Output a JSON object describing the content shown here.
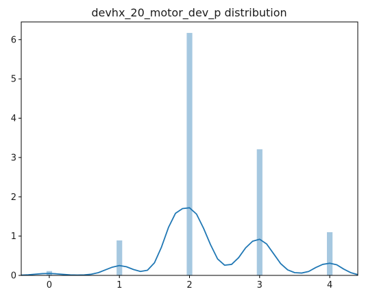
{
  "chart_data": {
    "type": "bar",
    "title": "devhx_20_motor_dev_p distribution",
    "xlabel": "",
    "ylabel": "",
    "xlim": [
      -0.4,
      4.4
    ],
    "ylim": [
      0,
      6.45
    ],
    "xticks": [
      0,
      1,
      2,
      3,
      4
    ],
    "yticks": [
      0,
      1,
      2,
      3,
      4,
      5,
      6
    ],
    "grid": false,
    "histogram": {
      "x": [
        0,
        1,
        2,
        3,
        4
      ],
      "values": [
        0.11,
        0.89,
        6.17,
        3.21,
        1.1
      ],
      "bin_width": 0.08,
      "color": "#a6c8e0"
    },
    "kde": {
      "color": "#1f77b4",
      "x": [
        -0.4,
        -0.3,
        -0.2,
        -0.1,
        0.0,
        0.1,
        0.2,
        0.3,
        0.4,
        0.5,
        0.6,
        0.7,
        0.8,
        0.9,
        1.0,
        1.1,
        1.2,
        1.3,
        1.4,
        1.5,
        1.6,
        1.7,
        1.8,
        1.9,
        2.0,
        2.1,
        2.2,
        2.3,
        2.4,
        2.5,
        2.6,
        2.7,
        2.8,
        2.9,
        3.0,
        3.1,
        3.2,
        3.3,
        3.4,
        3.5,
        3.6,
        3.7,
        3.8,
        3.9,
        4.0,
        4.1,
        4.2,
        4.3,
        4.4
      ],
      "y": [
        0.005,
        0.015,
        0.03,
        0.045,
        0.05,
        0.04,
        0.025,
        0.012,
        0.008,
        0.012,
        0.03,
        0.07,
        0.14,
        0.21,
        0.25,
        0.22,
        0.15,
        0.1,
        0.13,
        0.32,
        0.72,
        1.22,
        1.58,
        1.7,
        1.72,
        1.56,
        1.2,
        0.78,
        0.42,
        0.26,
        0.28,
        0.45,
        0.7,
        0.87,
        0.92,
        0.8,
        0.55,
        0.3,
        0.14,
        0.07,
        0.06,
        0.1,
        0.2,
        0.28,
        0.31,
        0.27,
        0.16,
        0.07,
        0.02
      ]
    }
  }
}
